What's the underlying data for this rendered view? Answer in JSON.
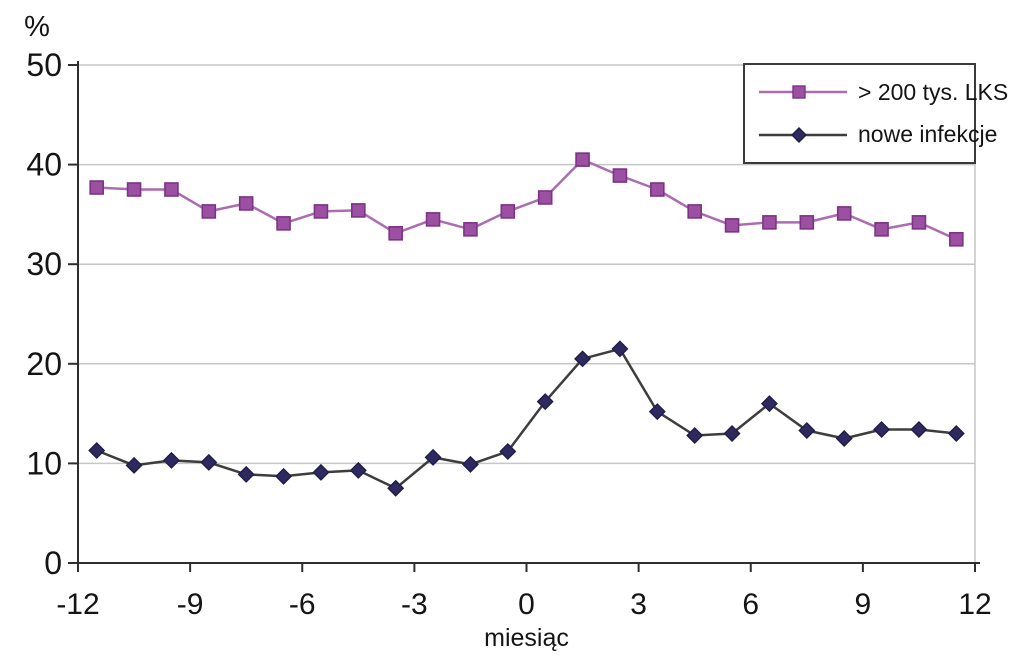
{
  "chart_data": {
    "type": "line",
    "title": "",
    "y_unit_label": "%",
    "xlabel": "miesiąc",
    "ylim": [
      0,
      50
    ],
    "xlim": [
      -12,
      12
    ],
    "y_ticks": [
      0,
      10,
      20,
      30,
      40,
      50
    ],
    "x_ticks": [
      -12,
      -9,
      -6,
      -3,
      0,
      3,
      6,
      9,
      12
    ],
    "grid": "horizontal",
    "legend_position": "top-right",
    "x": [
      -11.5,
      -10.5,
      -9.5,
      -8.5,
      -7.5,
      -6.5,
      -5.5,
      -4.5,
      -3.5,
      -2.5,
      -1.5,
      -0.5,
      0.5,
      1.5,
      2.5,
      3.5,
      4.5,
      5.5,
      6.5,
      7.5,
      8.5,
      9.5,
      10.5,
      11.5
    ],
    "series": [
      {
        "name": "> 200 tys. LKS",
        "marker": "square",
        "values": [
          37.7,
          37.5,
          37.5,
          35.3,
          36.1,
          34.1,
          35.3,
          35.4,
          33.1,
          34.5,
          33.5,
          35.3,
          36.7,
          40.5,
          38.9,
          37.5,
          35.3,
          33.9,
          34.2,
          34.2,
          35.1,
          33.5,
          34.2,
          32.5
        ],
        "line_color": "#ab6cb2",
        "marker_fill": "#9c50a2",
        "marker_stroke": "#7c3386"
      },
      {
        "name": "nowe infekcje",
        "marker": "diamond",
        "values": [
          11.3,
          9.8,
          10.3,
          10.1,
          8.9,
          8.7,
          9.1,
          9.3,
          7.5,
          10.6,
          9.9,
          11.2,
          16.2,
          20.5,
          21.5,
          15.2,
          12.8,
          13.0,
          16.0,
          13.3,
          12.5,
          13.4,
          13.4,
          13.0
        ],
        "line_color": "#3d3d3d",
        "marker_fill": "#2e2a60",
        "marker_stroke": "#201c49"
      }
    ],
    "colors": {
      "axis": "#2e2e2e",
      "grid": "#c6c6c6",
      "text": "#141414",
      "legend_border": "#3a3a3a"
    }
  }
}
